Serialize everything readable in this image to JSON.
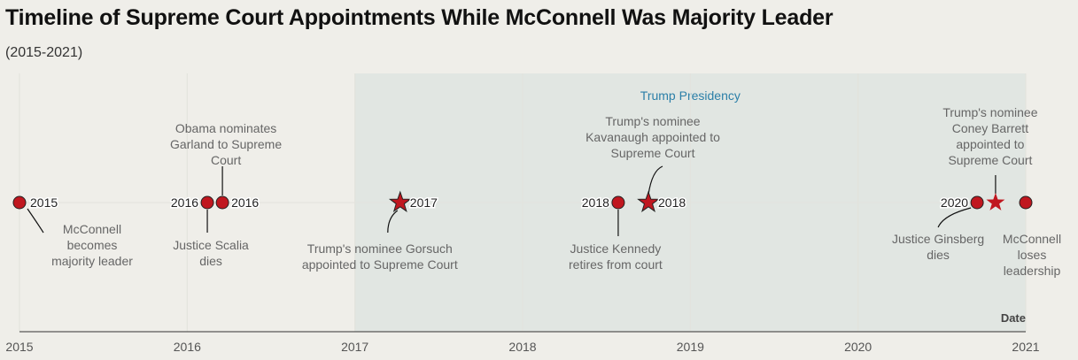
{
  "header": {
    "title": "Timeline of Supreme Court Appointments While McConnell Was Majority Leader",
    "subtitle": "(2015-2021)"
  },
  "colors": {
    "background": "#efeee9",
    "band": "#e1e6e2",
    "marker": "#c0171f",
    "band_label": "#2b7fa8",
    "annotation": "#666666"
  },
  "chart_data": {
    "type": "scatter",
    "xlabel": "Date",
    "xlim": [
      2015.0,
      2021.0
    ],
    "x_ticks": [
      "2015",
      "2016",
      "2017",
      "2018",
      "2019",
      "2020",
      "2021"
    ],
    "grid": true,
    "band": {
      "label": "Trump Presidency",
      "start": 2017.0,
      "end": 2021.0
    },
    "events": [
      {
        "date": 2015.0,
        "marker": "circle",
        "point_label": "2015",
        "annotation": [
          "McConnell",
          "becomes",
          "majority leader"
        ]
      },
      {
        "date": 2016.12,
        "marker": "circle",
        "point_label": "2016",
        "annotation": [
          "Justice Scalia",
          "dies"
        ]
      },
      {
        "date": 2016.21,
        "marker": "circle",
        "point_label": "2016",
        "annotation": [
          "Obama nominates",
          "Garland to Supreme",
          "Court"
        ]
      },
      {
        "date": 2017.27,
        "marker": "star",
        "point_label": "2017",
        "annotation": [
          "Trump's nominee Gorsuch",
          "appointed to Supreme Court"
        ]
      },
      {
        "date": 2018.57,
        "marker": "circle",
        "point_label": "2018",
        "annotation": [
          "Justice Kennedy",
          "retires from court"
        ]
      },
      {
        "date": 2018.75,
        "marker": "star",
        "point_label": "2018",
        "annotation": [
          "Trump's nominee",
          "Kavanaugh appointed to",
          "Supreme Court"
        ]
      },
      {
        "date": 2020.71,
        "marker": "circle",
        "point_label": "2020",
        "annotation": [
          "Justice Ginsberg",
          "dies"
        ]
      },
      {
        "date": 2020.82,
        "marker": "star",
        "point_label": "",
        "annotation": [
          "Trump's nominee",
          "Coney Barrett",
          "appointed to",
          "Supreme Court"
        ]
      },
      {
        "date": 2021.0,
        "marker": "circle",
        "point_label": "",
        "annotation": [
          "McConnell",
          "loses",
          "leadership"
        ]
      }
    ]
  }
}
